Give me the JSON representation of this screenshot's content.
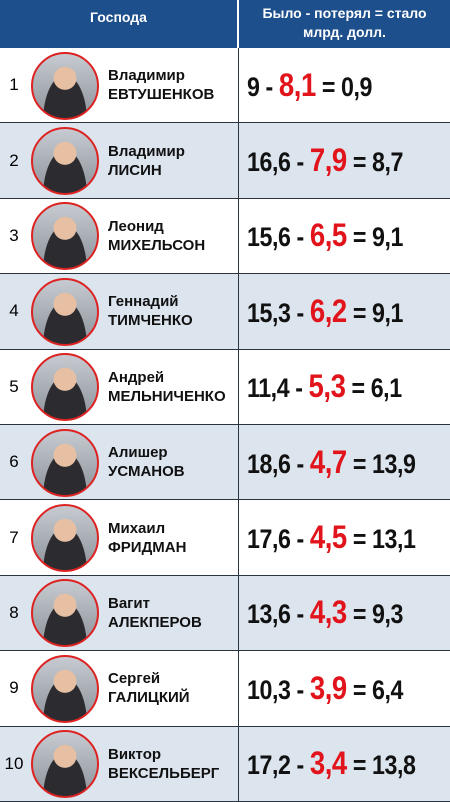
{
  "header": {
    "col1": "Господа",
    "col2_line1": "Было - потерял = стало",
    "col2_line2": "млрд. долл."
  },
  "operators": {
    "minus": "-",
    "equals": "="
  },
  "rows": [
    {
      "rank": 1,
      "first_name": "Владимир",
      "last_name": "ЕВТУШЕНКОВ",
      "was": "9",
      "lost": "8,1",
      "now": "0,9"
    },
    {
      "rank": 2,
      "first_name": "Владимир",
      "last_name": "ЛИСИН",
      "was": "16,6",
      "lost": "7,9",
      "now": "8,7"
    },
    {
      "rank": 3,
      "first_name": "Леонид",
      "last_name": "МИХЕЛЬСОН",
      "was": "15,6",
      "lost": "6,5",
      "now": "9,1"
    },
    {
      "rank": 4,
      "first_name": "Геннадий",
      "last_name": "ТИМЧЕНКО",
      "was": "15,3",
      "lost": "6,2",
      "now": "9,1"
    },
    {
      "rank": 5,
      "first_name": "Андрей",
      "last_name": "МЕЛЬНИЧЕНКО",
      "was": "11,4",
      "lost": "5,3",
      "now": "6,1"
    },
    {
      "rank": 6,
      "first_name": "Алишер",
      "last_name": "УСМАНОВ",
      "was": "18,6",
      "lost": "4,7",
      "now": "13,9"
    },
    {
      "rank": 7,
      "first_name": "Михаил",
      "last_name": "ФРИДМАН",
      "was": "17,6",
      "lost": "4,5",
      "now": "13,1"
    },
    {
      "rank": 8,
      "first_name": "Вагит",
      "last_name": "АЛЕКПЕРОВ",
      "was": "13,6",
      "lost": "4,3",
      "now": "9,3"
    },
    {
      "rank": 9,
      "first_name": "Сергей",
      "last_name": "ГАЛИЦКИЙ",
      "was": "10,3",
      "lost": "3,9",
      "now": "6,4"
    },
    {
      "rank": 10,
      "first_name": "Виктор",
      "last_name": "ВЕКСЕЛЬБЕРГ",
      "was": "17,2",
      "lost": "3,4",
      "now": "13,8"
    }
  ]
}
